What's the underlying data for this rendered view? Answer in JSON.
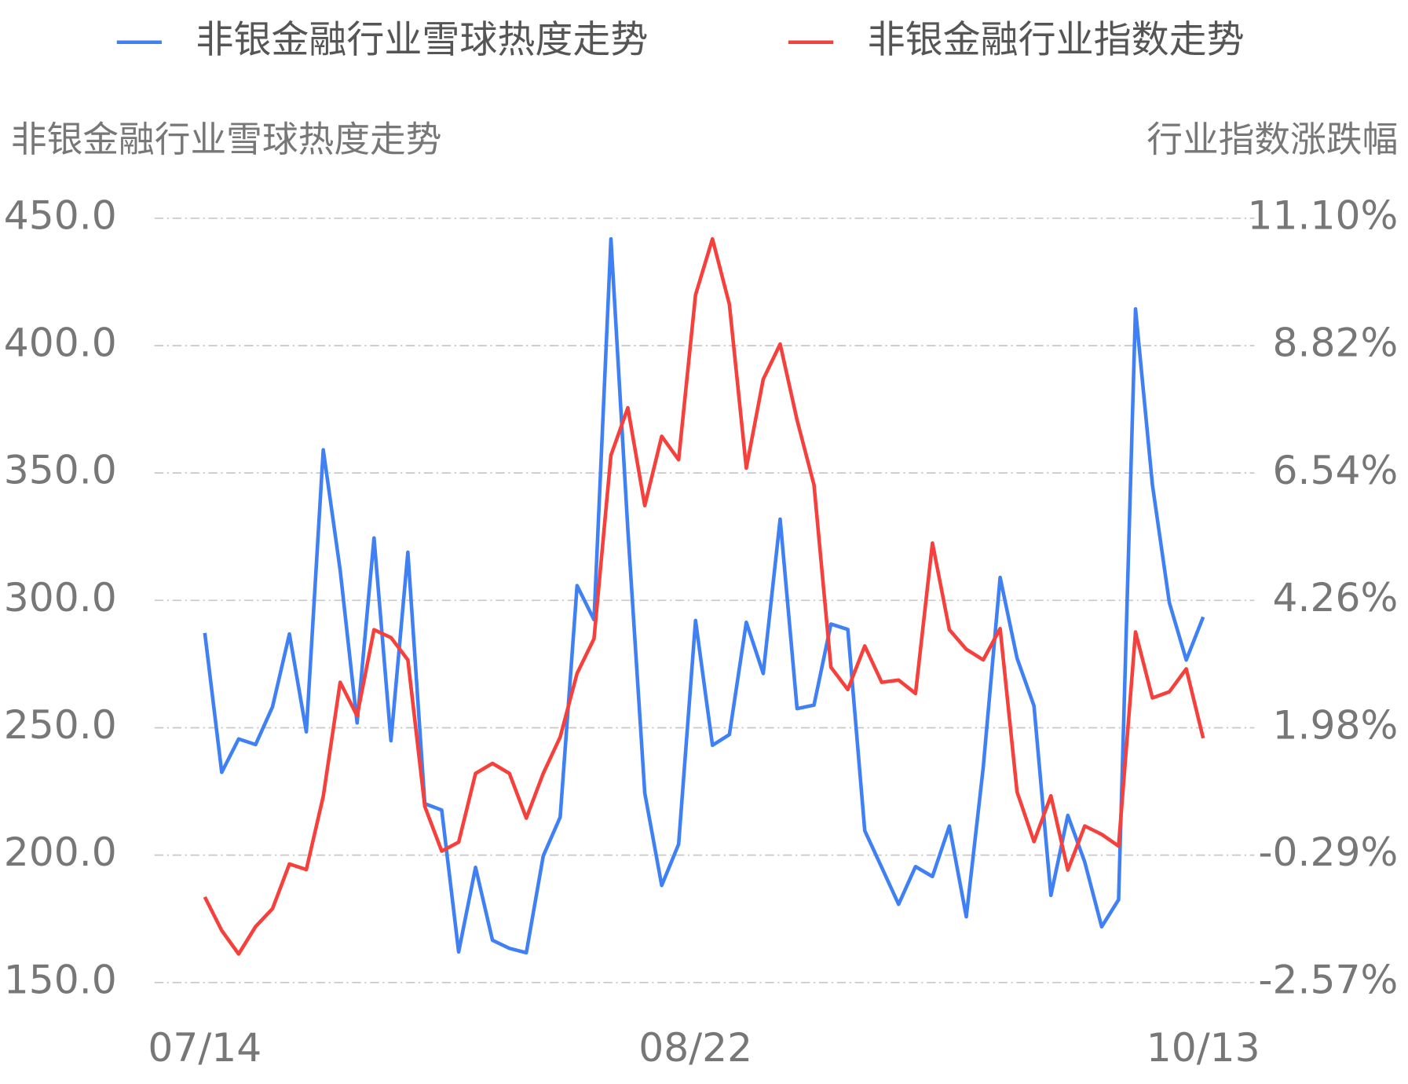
{
  "chart_data": {
    "type": "line",
    "legend": "top",
    "y_label": "非银金融行业雪球热度走势",
    "y2_label": "行业指数涨跌幅",
    "categories": [
      "07/14",
      null,
      null,
      null,
      null,
      null,
      null,
      null,
      null,
      null,
      null,
      null,
      null,
      null,
      null,
      null,
      null,
      null,
      null,
      null,
      null,
      null,
      null,
      null,
      null,
      null,
      null,
      null,
      null,
      "08/22",
      null,
      null,
      null,
      null,
      null,
      null,
      null,
      null,
      null,
      null,
      null,
      null,
      null,
      null,
      null,
      null,
      null,
      null,
      null,
      null,
      null,
      null,
      null,
      null,
      null,
      null,
      null,
      null,
      null,
      "10/13"
    ],
    "series": [
      {
        "name": "非银金融行业雪球热度走势",
        "color": "#4080f5",
        "values": [
          287.2,
          232.5,
          245.6,
          243.4,
          258.2,
          286.8,
          248.4,
          359.1,
          311.8,
          251.9,
          324.5,
          244.9,
          318.9,
          220.2,
          217.7,
          162.0,
          195.2,
          166.6,
          163.4,
          161.7,
          199.7,
          214.9,
          305.8,
          292.4,
          441.9,
          327.7,
          224.4,
          188.1,
          204.3,
          292.1,
          243.1,
          247.3,
          291.4,
          271.3,
          331.9,
          257.5,
          258.9,
          290.7,
          288.6,
          209.6,
          195.2,
          180.7,
          195.5,
          191.6,
          211.4,
          175.8,
          234.3,
          309.0,
          277.3,
          258.6,
          184.2,
          215.6,
          197.3,
          171.9,
          182.5,
          414.4,
          345.3,
          299.1,
          276.6,
          293.5
        ]
      },
      {
        "name": "非银金融行业指数走势",
        "color": "#f5403c",
        "axis": "y2",
        "values": [
          -1.04,
          -1.64,
          -2.06,
          -1.57,
          -1.25,
          -0.45,
          -0.55,
          0.76,
          2.8,
          2.2,
          3.74,
          3.6,
          3.2,
          0.58,
          -0.22,
          -0.06,
          1.17,
          1.35,
          1.17,
          0.37,
          1.17,
          1.82,
          2.96,
          3.58,
          6.86,
          7.71,
          5.96,
          7.2,
          6.78,
          9.73,
          10.73,
          9.56,
          6.63,
          8.22,
          8.85,
          7.49,
          6.33,
          3.07,
          2.67,
          3.45,
          2.8,
          2.84,
          2.6,
          5.29,
          3.74,
          3.39,
          3.2,
          3.76,
          0.84,
          -0.05,
          0.77,
          -0.56,
          0.23,
          0.08,
          -0.13,
          3.7,
          2.52,
          2.63,
          3.04,
          1.8
        ]
      }
    ],
    "ylim": [
      150,
      450
    ],
    "yticks": [
      {
        "value": 150,
        "label": "150.0"
      },
      {
        "value": 200,
        "label": "200.0"
      },
      {
        "value": 250,
        "label": "250.0"
      },
      {
        "value": 300,
        "label": "300.0"
      },
      {
        "value": 350,
        "label": "350.0"
      },
      {
        "value": 400,
        "label": "400.0"
      },
      {
        "value": 450,
        "label": "450.0"
      }
    ],
    "y2lim": [
      -2.57,
      11.1
    ],
    "y2ticks": [
      {
        "value": -2.57,
        "label": "-2.57%"
      },
      {
        "value": -0.29,
        "label": "-0.29%"
      },
      {
        "value": 1.98,
        "label": "1.98%"
      },
      {
        "value": 4.26,
        "label": "4.26%"
      },
      {
        "value": 6.54,
        "label": "6.54%"
      },
      {
        "value": 8.82,
        "label": "8.82%"
      },
      {
        "value": 11.1,
        "label": "11.10%"
      }
    ],
    "grid": true
  }
}
